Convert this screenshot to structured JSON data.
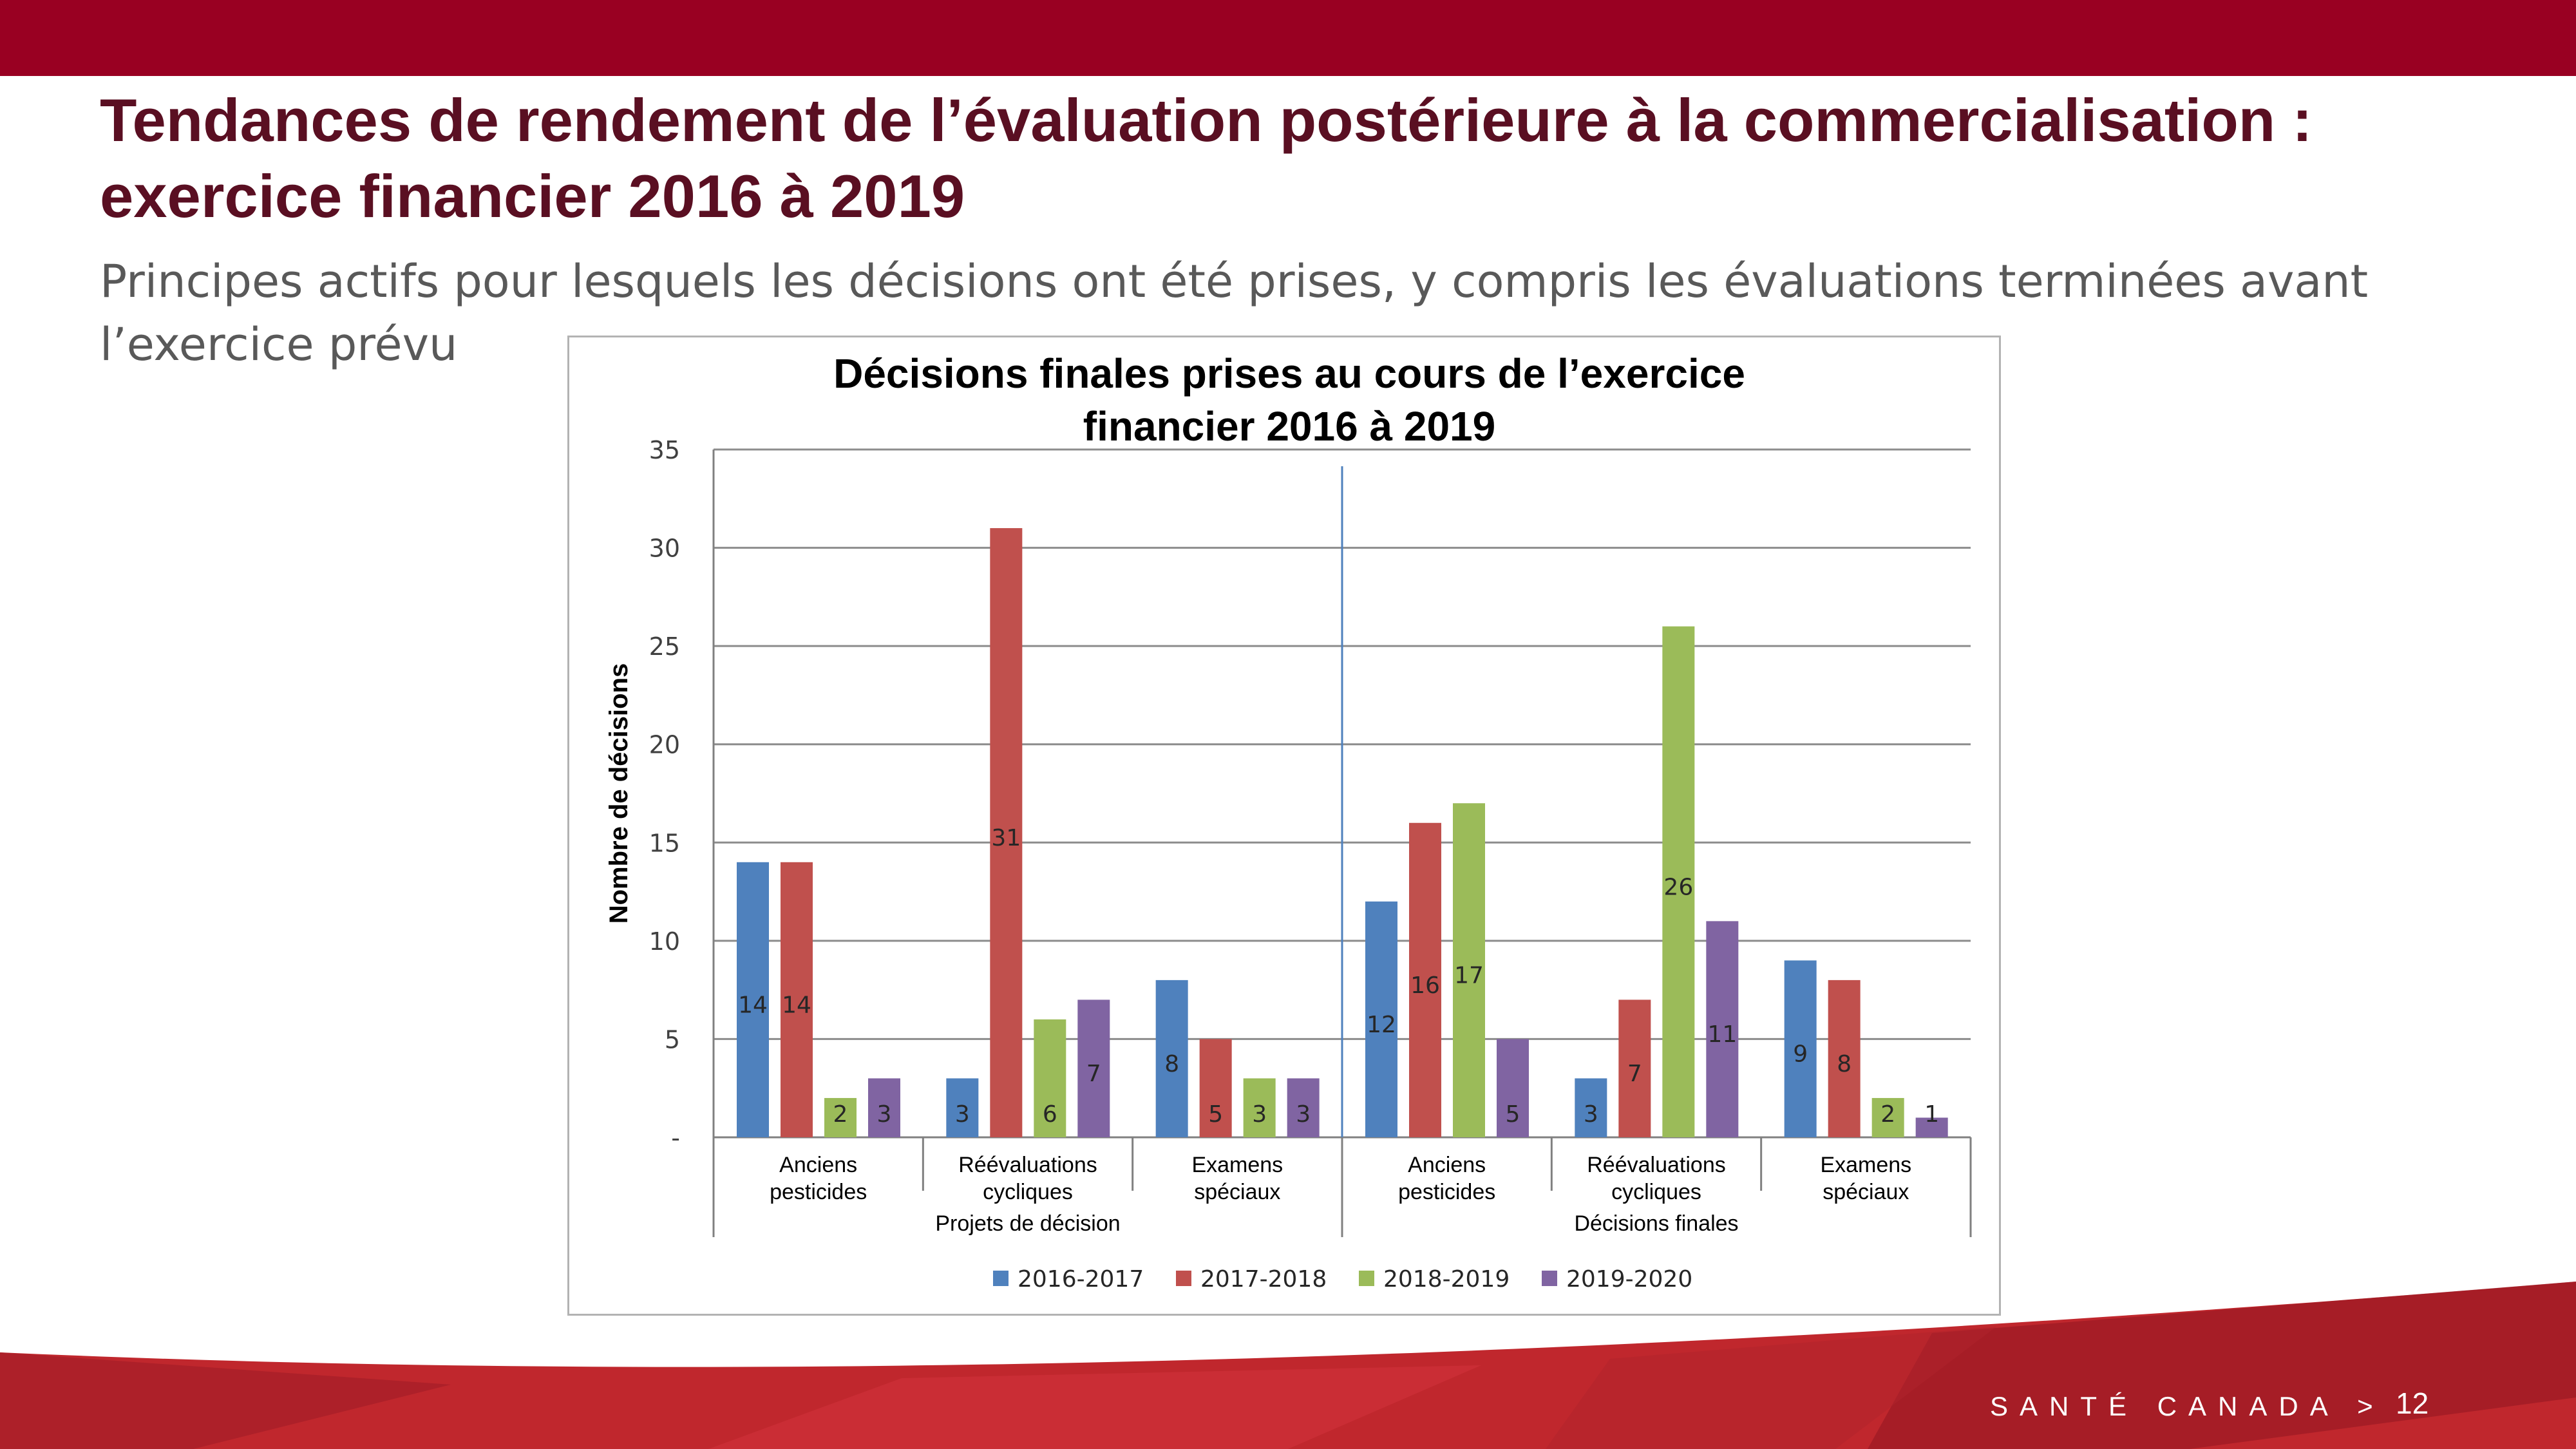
{
  "slide": {
    "title_line1": "Tendances de rendement de l’évaluation postérieure à la commercialisation :",
    "title_line2": "exercice financier 2016 à 2019",
    "subtitle": "Principes actifs pour lesquels les décisions ont été prises, y compris les évaluations terminées avant l’exercice prévu",
    "footer_text": "SANTÉ CANADA >",
    "page_number": "12",
    "colors": {
      "top_bar": "#990022",
      "title": "#5a0f22",
      "footer": "#c0272d"
    }
  },
  "chart_data": {
    "type": "bar",
    "title_lines": [
      "Décisions finales prises au cours de l’exercice",
      "financier 2016 à 2019"
    ],
    "ylabel": "Nombre de décisions",
    "xlabel": "",
    "ylim": [
      0,
      35
    ],
    "yticks": [
      0,
      5,
      10,
      15,
      20,
      25,
      30,
      35
    ],
    "ytick_labels": [
      "-",
      "5",
      "10",
      "15",
      "20",
      "25",
      "30",
      "35"
    ],
    "grid": true,
    "legend_position": "bottom",
    "groups": [
      {
        "label": "Projets de décision",
        "categories": [
          {
            "label_lines": [
              "Anciens",
              "pesticides"
            ]
          },
          {
            "label_lines": [
              "Réévaluations",
              "cycliques"
            ]
          },
          {
            "label_lines": [
              "Examens",
              "spéciaux"
            ]
          }
        ]
      },
      {
        "label": "Décisions finales",
        "categories": [
          {
            "label_lines": [
              "Anciens",
              "pesticides"
            ]
          },
          {
            "label_lines": [
              "Réévaluations",
              "cycliques"
            ]
          },
          {
            "label_lines": [
              "Examens",
              "spéciaux"
            ]
          }
        ]
      }
    ],
    "series": [
      {
        "name": "2016-2017",
        "color": "#4f81bd",
        "values": [
          14,
          3,
          8,
          12,
          3,
          9
        ]
      },
      {
        "name": "2017-2018",
        "color": "#c0504d",
        "values": [
          14,
          31,
          5,
          16,
          7,
          8
        ]
      },
      {
        "name": "2018-2019",
        "color": "#9bbb59",
        "values": [
          2,
          6,
          3,
          17,
          26,
          2
        ]
      },
      {
        "name": "2019-2020",
        "color": "#8064a2",
        "values": [
          3,
          7,
          3,
          5,
          11,
          1
        ]
      }
    ]
  }
}
